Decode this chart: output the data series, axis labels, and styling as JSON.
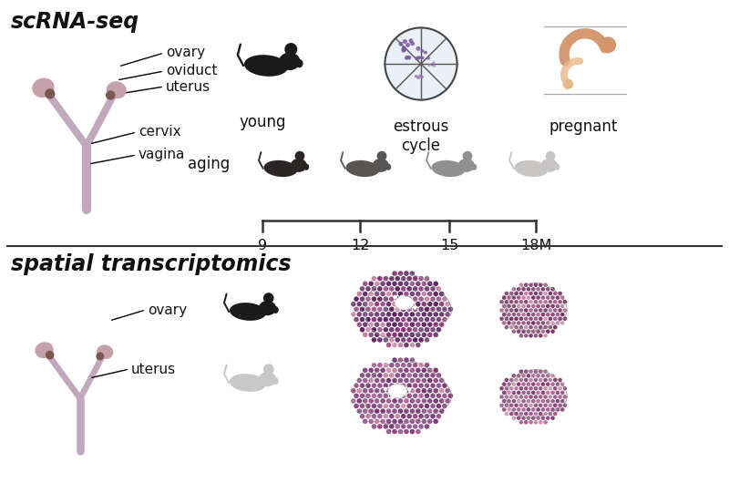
{
  "bg_color": "#ffffff",
  "top_section_title": "scRNA-seq",
  "bottom_section_title": "spatial transcriptomics",
  "organ_labels_top": [
    "ovary",
    "oviduct",
    "uterus",
    "cervix",
    "vagina"
  ],
  "organ_labels_bottom": [
    "ovary",
    "uterus"
  ],
  "age_ticks": [
    "9",
    "12",
    "15",
    "18M"
  ],
  "uterus_color": "#c2a8bc",
  "ovary_color": "#c4a0a8",
  "oviduct_color": "#7a5850",
  "mouse_dark": "#1a1a1a",
  "mouse_colors_aging": [
    "#2a2525",
    "#5a5555",
    "#909090",
    "#c8c5c5"
  ],
  "mouse_pregnant_color": "#d4956a",
  "mouse_pregnant_light": "#e8b88a",
  "divider_color": "#333333",
  "title_fontsize": 15,
  "label_fontsize": 11,
  "small_fontsize": 10,
  "estrous_circle_color_dark": "#7a55a0",
  "estrous_circle_color_light": "#b8a0d0",
  "spatial_color_dark1": "#5a2060",
  "spatial_color_dark2": "#8a3575",
  "spatial_color_light1": "#7a3575",
  "spatial_color_light2": "#9a4585",
  "spatial_bg": "#f0e8f0"
}
